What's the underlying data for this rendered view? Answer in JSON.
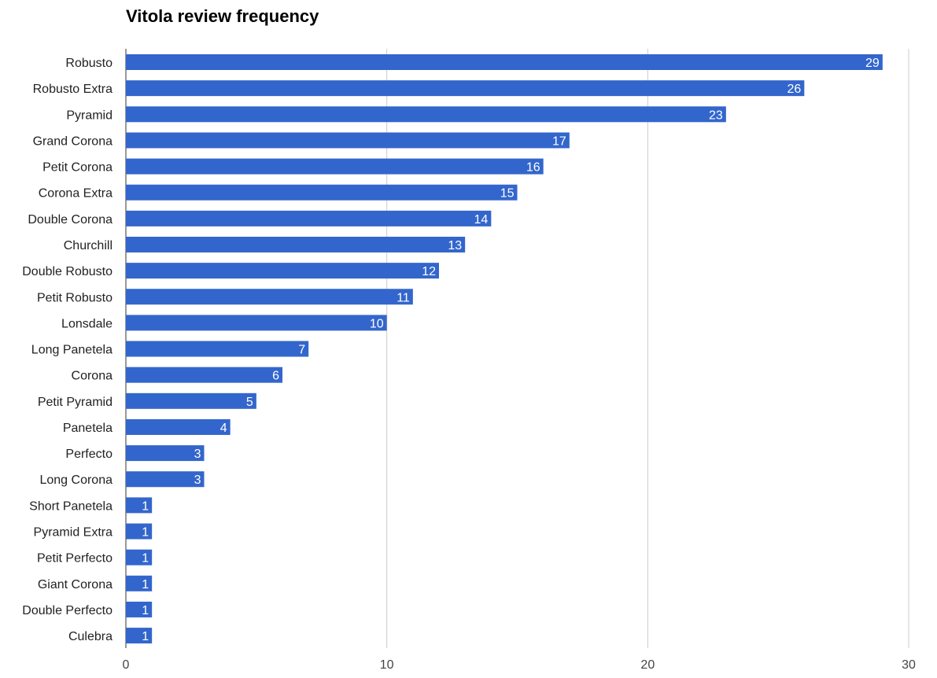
{
  "chart_data": {
    "type": "bar",
    "orientation": "horizontal",
    "title": "Vitola review frequency",
    "xlabel": "",
    "ylabel": "",
    "categories": [
      "Robusto",
      "Robusto Extra",
      "Pyramid",
      "Grand Corona",
      "Petit Corona",
      "Corona Extra",
      "Double Corona",
      "Churchill",
      "Double Robusto",
      "Petit Robusto",
      "Lonsdale",
      "Long Panetela",
      "Corona",
      "Petit Pyramid",
      "Panetela",
      "Perfecto",
      "Long Corona",
      "Short Panetela",
      "Pyramid Extra",
      "Petit Perfecto",
      "Giant Corona",
      "Double Perfecto",
      "Culebra"
    ],
    "values": [
      29,
      26,
      23,
      17,
      16,
      15,
      14,
      13,
      12,
      11,
      10,
      7,
      6,
      5,
      4,
      3,
      3,
      1,
      1,
      1,
      1,
      1,
      1
    ],
    "xlim": [
      0,
      30
    ],
    "xticks": [
      0,
      10,
      20,
      30
    ],
    "grid": true,
    "legend": "none",
    "bar_color": "#3366cc",
    "label_color": "#ffffff",
    "grid_color": "#cccccc"
  }
}
